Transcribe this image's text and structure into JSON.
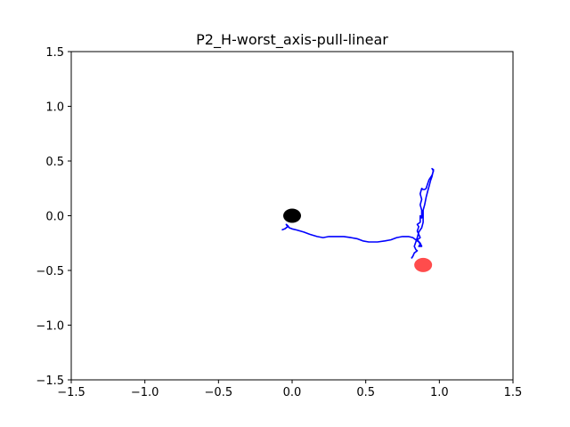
{
  "chart_data": {
    "type": "scatter",
    "title": "P2_H-worst_axis-pull-linear",
    "xlabel": "",
    "ylabel": "",
    "xlim": [
      -1.5,
      1.5
    ],
    "ylim": [
      -1.5,
      1.5
    ],
    "grid": false,
    "x_ticks": [
      -1.5,
      -1.0,
      -0.5,
      0.0,
      0.5,
      1.0,
      1.5
    ],
    "x_tick_labels": [
      "−1.5",
      "−1.0",
      "−0.5",
      "0.0",
      "0.5",
      "1.0",
      "1.5"
    ],
    "y_ticks": [
      -1.5,
      -1.0,
      -0.5,
      0.0,
      0.5,
      1.0,
      1.5
    ],
    "y_tick_labels": [
      "−1.5",
      "−1.0",
      "−0.5",
      "0.0",
      "0.5",
      "1.0",
      "1.5"
    ],
    "markers": [
      {
        "x": 0.0,
        "y": 0.0,
        "color": "#000000",
        "opacity": 1.0
      },
      {
        "x": 0.89,
        "y": -0.45,
        "color": "#ff0000",
        "opacity": 0.7
      }
    ],
    "path": {
      "color": "#0000ff",
      "points": [
        [
          -0.07,
          -0.13
        ],
        [
          -0.05,
          -0.12
        ],
        [
          -0.03,
          -0.1
        ],
        [
          -0.04,
          -0.08
        ],
        [
          -0.03,
          -0.09
        ],
        [
          -0.02,
          -0.11
        ],
        [
          0.0,
          -0.12
        ],
        [
          0.03,
          -0.13
        ],
        [
          0.08,
          -0.15
        ],
        [
          0.12,
          -0.17
        ],
        [
          0.17,
          -0.19
        ],
        [
          0.21,
          -0.2
        ],
        [
          0.25,
          -0.19
        ],
        [
          0.3,
          -0.19
        ],
        [
          0.35,
          -0.19
        ],
        [
          0.4,
          -0.2
        ],
        [
          0.44,
          -0.21
        ],
        [
          0.48,
          -0.23
        ],
        [
          0.52,
          -0.24
        ],
        [
          0.58,
          -0.24
        ],
        [
          0.63,
          -0.23
        ],
        [
          0.67,
          -0.22
        ],
        [
          0.71,
          -0.2
        ],
        [
          0.75,
          -0.19
        ],
        [
          0.79,
          -0.19
        ],
        [
          0.82,
          -0.2
        ],
        [
          0.84,
          -0.22
        ],
        [
          0.86,
          -0.24
        ],
        [
          0.87,
          -0.26
        ],
        [
          0.86,
          -0.28
        ],
        [
          0.88,
          -0.28
        ],
        [
          0.87,
          -0.25
        ],
        [
          0.85,
          -0.22
        ],
        [
          0.87,
          -0.2
        ],
        [
          0.86,
          -0.17
        ],
        [
          0.85,
          -0.14
        ],
        [
          0.86,
          -0.1
        ],
        [
          0.85,
          -0.08
        ],
        [
          0.87,
          -0.06
        ],
        [
          0.87,
          0.0
        ],
        [
          0.88,
          -0.02
        ],
        [
          0.88,
          0.05
        ],
        [
          0.87,
          0.1
        ],
        [
          0.88,
          0.15
        ],
        [
          0.87,
          0.2
        ],
        [
          0.88,
          0.25
        ],
        [
          0.89,
          0.24
        ],
        [
          0.9,
          0.24
        ],
        [
          0.91,
          0.25
        ],
        [
          0.92,
          0.29
        ],
        [
          0.93,
          0.33
        ],
        [
          0.95,
          0.37
        ],
        [
          0.96,
          0.41
        ],
        [
          0.95,
          0.43
        ],
        [
          0.96,
          0.42
        ],
        [
          0.95,
          0.36
        ],
        [
          0.94,
          0.32
        ],
        [
          0.93,
          0.27
        ],
        [
          0.92,
          0.22
        ],
        [
          0.91,
          0.17
        ],
        [
          0.9,
          0.1
        ],
        [
          0.89,
          0.05
        ],
        [
          0.89,
          0.0
        ],
        [
          0.89,
          -0.03
        ],
        [
          0.89,
          -0.06
        ],
        [
          0.88,
          -0.11
        ],
        [
          0.87,
          -0.13
        ],
        [
          0.86,
          -0.15
        ],
        [
          0.85,
          -0.2
        ],
        [
          0.84,
          -0.24
        ],
        [
          0.83,
          -0.28
        ],
        [
          0.84,
          -0.31
        ],
        [
          0.85,
          -0.32
        ],
        [
          0.83,
          -0.34
        ],
        [
          0.82,
          -0.37
        ],
        [
          0.81,
          -0.39
        ]
      ]
    }
  }
}
